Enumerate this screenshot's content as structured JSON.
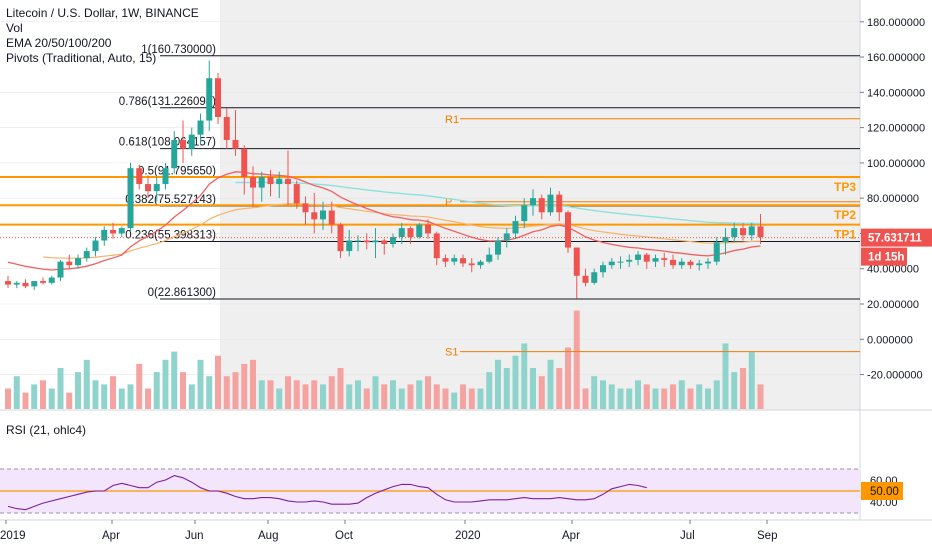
{
  "header": {
    "title": "Litecoin / U.S. Dollar, 1W, BINANCE",
    "vol_label": "Vol",
    "ema_label": "EMA 20/50/100/200",
    "pivots_label": "Pivots (Traditional, Auto, 15)"
  },
  "rsi": {
    "label": "RSI (21, ohlc4)",
    "ticks": [
      "60.00",
      "40.00"
    ],
    "level_label": "50.00",
    "values": [
      36,
      34,
      33,
      36,
      39,
      41,
      43,
      45,
      47,
      49,
      50,
      50,
      55,
      57,
      55,
      53,
      53,
      58,
      60,
      64,
      62,
      58,
      53,
      50,
      50,
      48,
      45,
      43,
      43,
      44,
      44,
      43,
      41,
      40,
      40,
      41,
      40,
      38,
      38,
      38,
      39,
      44,
      48,
      51,
      54,
      56,
      56,
      54,
      53,
      47,
      42,
      40,
      40,
      40,
      41,
      42,
      42,
      42,
      43,
      44,
      43,
      43,
      43,
      44,
      43,
      42,
      42,
      43,
      47,
      52,
      54,
      56,
      55,
      53
    ]
  },
  "price_scale": {
    "ticks": [
      "180.000000",
      "160.000000",
      "140.000000",
      "120.000000",
      "100.000000",
      "80.000000",
      "60.000000",
      "40.000000",
      "20.000000",
      "0.000000",
      "-20.000000"
    ],
    "last_price": "57.631711",
    "countdown": "1d 15h"
  },
  "time_axis": [
    "2019",
    "Apr",
    "Jun",
    "Aug",
    "Oct",
    "2020",
    "Apr",
    "Jul",
    "Sep"
  ],
  "fib_labels": [
    {
      "text": "1(160.730000)",
      "value": 160.73
    },
    {
      "text": "0.786(131.226098)",
      "value": 131.226
    },
    {
      "text": "0.618(108.064157)",
      "value": 108.064
    },
    {
      "text": "0.5(91.795650)",
      "value": 91.796
    },
    {
      "text": "0.382(75.527143)",
      "value": 75.527
    },
    {
      "text": "0.236(55.398313)",
      "value": 55.398
    },
    {
      "text": "0(22.861300)",
      "value": 22.861
    }
  ],
  "pivot_labels": {
    "r1": "R1",
    "p": "P",
    "s1": "S1"
  },
  "tp_labels": [
    "TP3",
    "TP2",
    "TP1"
  ],
  "colors": {
    "up": "#26a69a",
    "down": "#ef5350",
    "vol_up": "#8fd4cc",
    "vol_down": "#f5a3a1",
    "fib": "#131722",
    "tp": "#ff9800",
    "pivot": "#f57c00",
    "rsi_line": "#7b1fa2",
    "rsi_band": "#f3e5fc",
    "ema_red": "#f06060",
    "ema_orange": "#f8b26a",
    "ema_cyan": "#8de0e0"
  },
  "chart_data": {
    "type": "candlestick",
    "title": "Litecoin / U.S. Dollar, 1W, BINANCE",
    "y_range": [
      -37,
      190
    ],
    "pivots": {
      "R1": 125,
      "P": 78,
      "S1": -7
    },
    "tp_levels": {
      "TP3": 92,
      "TP2": 76,
      "TP1": 65
    },
    "candles": [
      [
        33,
        36,
        29,
        31
      ],
      [
        31,
        33,
        29,
        32
      ],
      [
        32,
        34,
        29,
        30
      ],
      [
        30,
        33,
        28,
        33
      ],
      [
        33,
        35,
        31,
        32
      ],
      [
        32,
        36,
        31,
        35
      ],
      [
        35,
        45,
        33,
        44
      ],
      [
        44,
        48,
        40,
        42
      ],
      [
        42,
        48,
        40,
        46
      ],
      [
        46,
        52,
        44,
        50
      ],
      [
        50,
        58,
        47,
        56
      ],
      [
        56,
        64,
        53,
        62
      ],
      [
        62,
        66,
        57,
        60
      ],
      [
        60,
        64,
        58,
        63
      ],
      [
        63,
        100,
        61,
        97
      ],
      [
        97,
        99,
        85,
        88
      ],
      [
        88,
        93,
        80,
        84
      ],
      [
        84,
        92,
        78,
        88
      ],
      [
        88,
        100,
        85,
        97
      ],
      [
        97,
        118,
        94,
        113
      ],
      [
        113,
        124,
        100,
        108
      ],
      [
        108,
        120,
        104,
        116
      ],
      [
        116,
        128,
        110,
        124
      ],
      [
        124,
        158,
        118,
        148
      ],
      [
        148,
        151,
        122,
        126
      ],
      [
        126,
        131,
        108,
        113
      ],
      [
        113,
        130,
        104,
        108
      ],
      [
        108,
        110,
        82,
        92
      ],
      [
        92,
        98,
        75,
        86
      ],
      [
        86,
        95,
        78,
        92
      ],
      [
        92,
        96,
        81,
        88
      ],
      [
        88,
        95,
        80,
        91
      ],
      [
        91,
        107,
        76,
        88
      ],
      [
        88,
        90,
        74,
        77
      ],
      [
        77,
        81,
        65,
        72
      ],
      [
        72,
        83,
        60,
        68
      ],
      [
        68,
        78,
        62,
        73
      ],
      [
        73,
        78,
        60,
        65
      ],
      [
        65,
        66,
        46,
        50
      ],
      [
        50,
        62,
        47,
        56
      ],
      [
        56,
        59,
        50,
        56
      ],
      [
        56,
        60,
        51,
        55
      ],
      [
        55,
        63,
        46,
        56
      ],
      [
        56,
        57,
        48,
        54
      ],
      [
        54,
        60,
        52,
        58
      ],
      [
        58,
        66,
        54,
        63
      ],
      [
        63,
        64,
        54,
        58
      ],
      [
        58,
        66,
        57,
        65
      ],
      [
        65,
        68,
        57,
        60
      ],
      [
        60,
        61,
        42,
        46
      ],
      [
        46,
        48,
        41,
        44
      ],
      [
        44,
        48,
        42,
        46
      ],
      [
        46,
        48,
        41,
        43
      ],
      [
        43,
        46,
        38,
        42
      ],
      [
        42,
        45,
        40,
        44
      ],
      [
        44,
        52,
        43,
        48
      ],
      [
        48,
        58,
        45,
        56
      ],
      [
        56,
        63,
        52,
        60
      ],
      [
        60,
        70,
        57,
        67
      ],
      [
        67,
        80,
        63,
        76
      ],
      [
        76,
        85,
        70,
        80
      ],
      [
        80,
        82,
        68,
        72
      ],
      [
        72,
        86,
        70,
        82
      ],
      [
        82,
        84,
        67,
        72
      ],
      [
        72,
        73,
        49,
        52
      ],
      [
        52,
        52,
        23,
        36
      ],
      [
        36,
        40,
        30,
        32
      ],
      [
        32,
        40,
        31,
        38
      ],
      [
        38,
        44,
        35,
        42
      ],
      [
        42,
        46,
        40,
        44
      ],
      [
        44,
        47,
        40,
        44
      ],
      [
        44,
        48,
        41,
        45
      ],
      [
        45,
        50,
        42,
        48
      ],
      [
        48,
        49,
        40,
        44
      ],
      [
        44,
        48,
        41,
        46
      ],
      [
        46,
        49,
        41,
        45
      ],
      [
        45,
        48,
        40,
        42
      ],
      [
        42,
        46,
        40,
        44
      ],
      [
        44,
        45,
        40,
        42
      ],
      [
        42,
        45,
        39,
        43
      ],
      [
        43,
        46,
        40,
        44
      ],
      [
        44,
        58,
        42,
        55
      ],
      [
        55,
        63,
        48,
        58
      ],
      [
        58,
        66,
        55,
        63
      ],
      [
        63,
        66,
        56,
        59
      ],
      [
        59,
        66,
        56,
        64
      ],
      [
        64,
        71,
        54,
        58
      ]
    ],
    "volume": [
      10,
      16,
      8,
      12,
      14,
      10,
      20,
      8,
      18,
      24,
      14,
      12,
      16,
      10,
      12,
      22,
      10,
      18,
      24,
      28,
      18,
      12,
      24,
      16,
      26,
      16,
      18,
      22,
      24,
      14,
      14,
      10,
      16,
      14,
      12,
      14,
      12,
      16,
      20,
      12,
      14,
      10,
      16,
      12,
      14,
      10,
      12,
      14,
      16,
      12,
      10,
      8,
      12,
      10,
      10,
      18,
      24,
      20,
      26,
      32,
      20,
      16,
      24,
      20,
      30,
      48,
      10,
      16,
      14,
      12,
      10,
      10,
      14,
      12,
      10,
      10,
      12,
      14,
      10,
      12,
      10,
      14,
      32,
      18,
      20,
      28,
      12
    ]
  }
}
